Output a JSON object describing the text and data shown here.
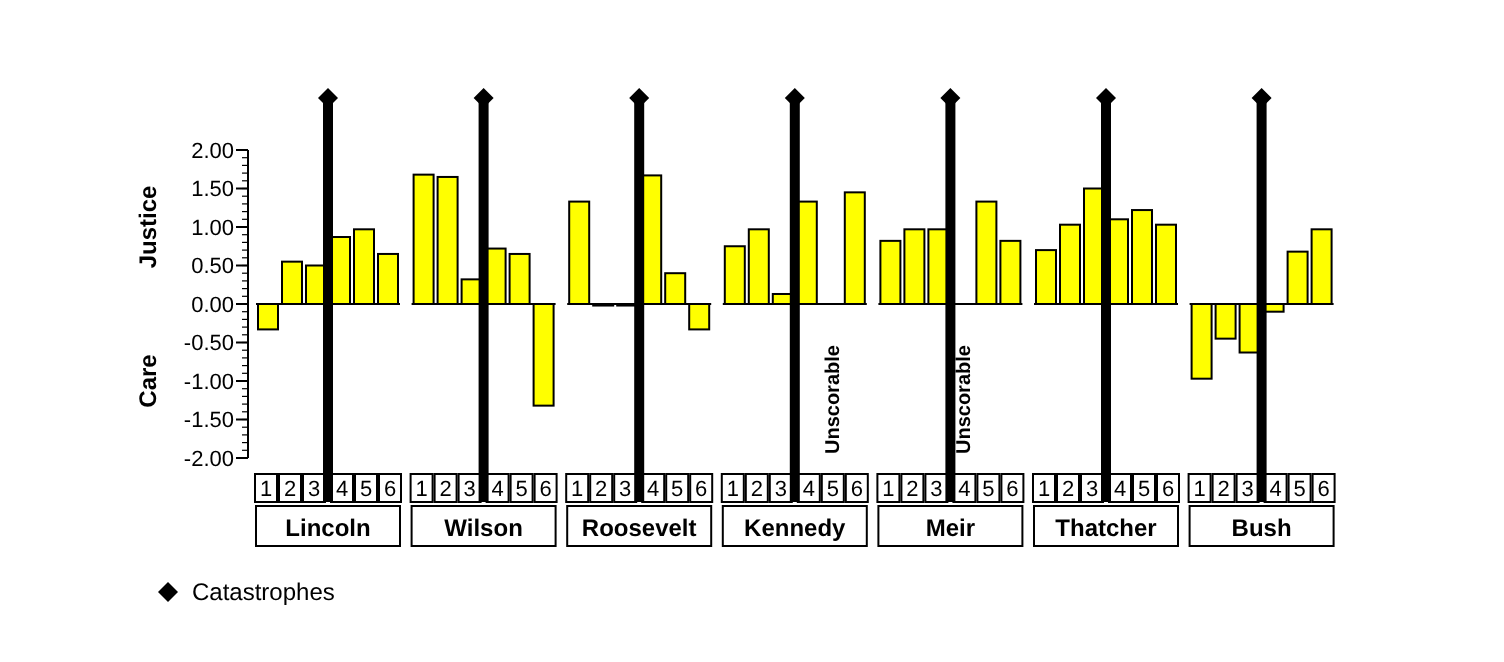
{
  "chart_data": [
    {
      "type": "bar",
      "title": "Lincoln",
      "x": [
        1,
        2,
        3,
        4,
        5,
        6
      ],
      "values": [
        -0.33,
        0.55,
        0.5,
        0.87,
        0.97,
        0.65
      ],
      "color": "#ffff00",
      "xlim": [
        0.5,
        6.5
      ],
      "xticks": [
        1,
        2,
        3,
        4,
        5,
        6
      ],
      "ylim": [
        -2,
        2
      ],
      "yticks": [
        {
          "value": -2,
          "label": "-2.00"
        },
        {
          "value": -1.5,
          "label": "-1.50"
        },
        {
          "value": -1,
          "label": "-1.00"
        },
        {
          "value": -0.5,
          "label": "-0.50"
        },
        {
          "value": 0,
          "label": "0.00"
        },
        {
          "value": 0.5,
          "label": "0.50"
        },
        {
          "value": 1,
          "label": "1.00"
        },
        {
          "value": 1.5,
          "label": "1.50"
        },
        {
          "value": 2,
          "label": "2.00"
        }
      ],
      "ylabel": "Justice",
      "annotations": [
        "Care"
      ],
      "ref_lines": [
        {
          "axis": "x",
          "value": 3.5,
          "label": "Catastrophes",
          "color": "#000000"
        }
      ],
      "legend": "bottom left"
    },
    {
      "type": "bar",
      "title": "Wilson",
      "x": [
        1,
        2,
        3,
        4,
        5,
        6
      ],
      "values": [
        1.68,
        1.65,
        0.32,
        0.72,
        0.65,
        -1.32
      ],
      "color": "#ffff00",
      "xlim": [
        0.5,
        6.5
      ],
      "xticks": [
        1,
        2,
        3,
        4,
        5,
        6
      ],
      "ylim": [
        -2,
        2
      ],
      "tick_labels": "x",
      "ref_lines": [
        {
          "axis": "x",
          "value": 3.5,
          "color": "#000000"
        }
      ]
    },
    {
      "type": "bar",
      "title": "Roosevelt",
      "x": [
        1,
        2,
        3,
        4,
        5,
        6
      ],
      "values": [
        1.33,
        -0.02,
        -0.02,
        1.67,
        0.4,
        -0.33
      ],
      "color": "#ffff00",
      "xlim": [
        0.5,
        6.5
      ],
      "xticks": [
        1,
        2,
        3,
        4,
        5,
        6
      ],
      "ylim": [
        -2,
        2
      ],
      "tick_labels": "x",
      "ref_lines": [
        {
          "axis": "x",
          "value": 3.5,
          "color": "#000000"
        }
      ]
    },
    {
      "type": "bar",
      "title": "Kennedy",
      "x": [
        1,
        2,
        3,
        4,
        5,
        6
      ],
      "values": [
        0.75,
        0.97,
        0.13,
        1.33,
        null,
        1.45
      ],
      "color": "#ffff00",
      "xlim": [
        0.5,
        6.5
      ],
      "xticks": [
        1,
        2,
        3,
        4,
        5,
        6
      ],
      "ylim": [
        -2,
        2
      ],
      "tick_labels": "x",
      "annotations": [
        "Unscorable"
      ],
      "ref_lines": [
        {
          "axis": "x",
          "value": 3.5,
          "color": "#000000"
        }
      ]
    },
    {
      "type": "bar",
      "title": "Meir",
      "x": [
        1,
        2,
        3,
        4,
        5,
        6
      ],
      "values": [
        0.82,
        0.97,
        0.97,
        null,
        1.33,
        0.82
      ],
      "color": "#ffff00",
      "xlim": [
        0.5,
        6.5
      ],
      "xticks": [
        1,
        2,
        3,
        4,
        5,
        6
      ],
      "ylim": [
        -2,
        2
      ],
      "tick_labels": "x",
      "annotations": [
        "Unscorable"
      ],
      "ref_lines": [
        {
          "axis": "x",
          "value": 3.5,
          "color": "#000000"
        }
      ]
    },
    {
      "type": "bar",
      "title": "Thatcher",
      "x": [
        1,
        2,
        3,
        4,
        5,
        6
      ],
      "values": [
        0.7,
        1.03,
        1.5,
        1.1,
        1.22,
        1.03
      ],
      "color": "#ffff00",
      "xlim": [
        0.5,
        6.5
      ],
      "xticks": [
        1,
        2,
        3,
        4,
        5,
        6
      ],
      "ylim": [
        -2,
        2
      ],
      "tick_labels": "x",
      "ref_lines": [
        {
          "axis": "x",
          "value": 3.5,
          "color": "#000000"
        }
      ]
    },
    {
      "type": "bar",
      "title": "Bush",
      "x": [
        1,
        2,
        3,
        4,
        5,
        6
      ],
      "values": [
        -0.97,
        -0.45,
        -0.63,
        -0.1,
        0.68,
        0.97
      ],
      "color": "#ffff00",
      "xlim": [
        0.5,
        6.5
      ],
      "xticks": [
        1,
        2,
        3,
        4,
        5,
        6
      ],
      "ylim": [
        -2,
        2
      ],
      "tick_labels": "x",
      "ref_lines": [
        {
          "axis": "x",
          "value": 3.5,
          "color": "#000000"
        }
      ]
    }
  ]
}
